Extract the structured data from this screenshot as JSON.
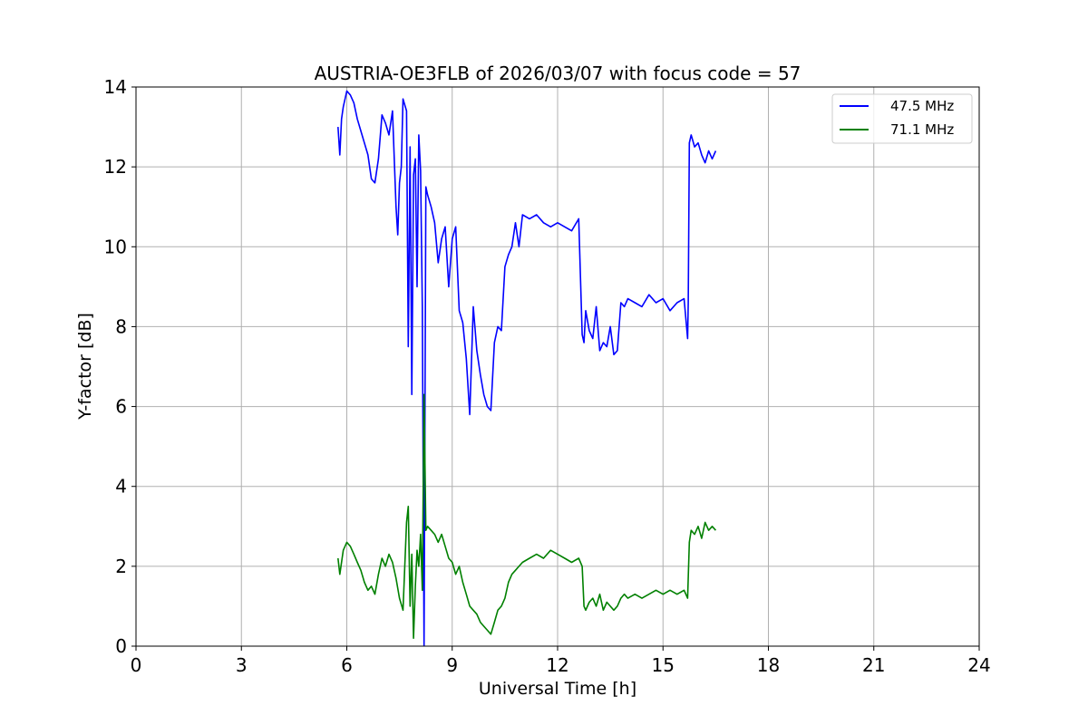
{
  "chart_data": {
    "type": "line",
    "title": "AUSTRIA-OE3FLB of 2026/03/07 with focus code = 57",
    "xlabel": "Universal Time [h]",
    "ylabel": "Y-factor [dB]",
    "xlim": [
      0,
      24
    ],
    "ylim": [
      0,
      14
    ],
    "xticks": [
      0,
      3,
      6,
      9,
      12,
      15,
      18,
      21,
      24
    ],
    "yticks": [
      0,
      2,
      4,
      6,
      8,
      10,
      12,
      14
    ],
    "grid": true,
    "legend_position": "top-right",
    "series": [
      {
        "name": "47.5 MHz",
        "color": "#0000ff",
        "x": [
          5.75,
          5.8,
          5.85,
          5.9,
          6.0,
          6.1,
          6.2,
          6.3,
          6.4,
          6.5,
          6.6,
          6.7,
          6.8,
          6.9,
          7.0,
          7.1,
          7.2,
          7.3,
          7.4,
          7.45,
          7.5,
          7.55,
          7.6,
          7.7,
          7.75,
          7.8,
          7.85,
          7.9,
          7.95,
          8.0,
          8.05,
          8.1,
          8.15,
          8.2,
          8.25,
          8.3,
          8.4,
          8.5,
          8.6,
          8.7,
          8.8,
          8.9,
          9.0,
          9.1,
          9.2,
          9.3,
          9.4,
          9.5,
          9.6,
          9.7,
          9.8,
          9.9,
          10.0,
          10.1,
          10.2,
          10.3,
          10.4,
          10.5,
          10.6,
          10.7,
          10.8,
          10.9,
          11.0,
          11.2,
          11.4,
          11.6,
          11.8,
          12.0,
          12.2,
          12.4,
          12.6,
          12.7,
          12.75,
          12.8,
          12.9,
          13.0,
          13.1,
          13.2,
          13.3,
          13.4,
          13.5,
          13.6,
          13.7,
          13.8,
          13.9,
          14.0,
          14.2,
          14.4,
          14.6,
          14.8,
          15.0,
          15.2,
          15.4,
          15.6,
          15.7,
          15.72,
          15.75,
          15.8,
          15.9,
          16.0,
          16.1,
          16.2,
          16.3,
          16.4,
          16.5
        ],
        "values": [
          13.0,
          12.3,
          13.2,
          13.5,
          13.9,
          13.8,
          13.6,
          13.2,
          12.9,
          12.6,
          12.3,
          11.7,
          11.6,
          12.2,
          13.3,
          13.1,
          12.8,
          13.4,
          11.0,
          10.3,
          11.6,
          12.0,
          13.7,
          13.4,
          7.5,
          12.5,
          6.3,
          11.8,
          12.2,
          9.0,
          12.8,
          11.9,
          8.5,
          0.0,
          11.5,
          11.3,
          11.0,
          10.6,
          9.6,
          10.2,
          10.5,
          9.0,
          10.2,
          10.5,
          8.4,
          8.1,
          7.2,
          5.8,
          8.5,
          7.4,
          6.8,
          6.3,
          6.0,
          5.9,
          7.6,
          8.0,
          7.9,
          9.5,
          9.8,
          10.0,
          10.6,
          10.0,
          10.8,
          10.7,
          10.8,
          10.6,
          10.5,
          10.6,
          10.5,
          10.4,
          10.7,
          7.8,
          7.6,
          8.4,
          7.9,
          7.7,
          8.5,
          7.4,
          7.6,
          7.5,
          8.0,
          7.3,
          7.4,
          8.6,
          8.5,
          8.7,
          8.6,
          8.5,
          8.8,
          8.6,
          8.7,
          8.4,
          8.6,
          8.7,
          7.7,
          8.6,
          12.6,
          12.8,
          12.5,
          12.6,
          12.3,
          12.1,
          12.4,
          12.2,
          12.4
        ]
      },
      {
        "name": "71.1 MHz",
        "color": "#008000",
        "x": [
          5.75,
          5.8,
          5.9,
          6.0,
          6.1,
          6.2,
          6.3,
          6.4,
          6.5,
          6.6,
          6.7,
          6.8,
          6.9,
          7.0,
          7.1,
          7.2,
          7.3,
          7.4,
          7.5,
          7.6,
          7.7,
          7.75,
          7.8,
          7.85,
          7.9,
          7.95,
          8.0,
          8.05,
          8.1,
          8.15,
          8.2,
          8.25,
          8.3,
          8.4,
          8.5,
          8.6,
          8.7,
          8.8,
          8.9,
          9.0,
          9.1,
          9.2,
          9.3,
          9.4,
          9.5,
          9.6,
          9.7,
          9.8,
          9.9,
          10.0,
          10.1,
          10.2,
          10.3,
          10.4,
          10.5,
          10.6,
          10.7,
          10.8,
          10.9,
          11.0,
          11.2,
          11.4,
          11.6,
          11.8,
          12.0,
          12.2,
          12.4,
          12.6,
          12.7,
          12.75,
          12.8,
          12.9,
          13.0,
          13.1,
          13.2,
          13.3,
          13.4,
          13.5,
          13.6,
          13.7,
          13.8,
          13.9,
          14.0,
          14.2,
          14.4,
          14.6,
          14.8,
          15.0,
          15.2,
          15.4,
          15.6,
          15.7,
          15.75,
          15.8,
          15.9,
          16.0,
          16.1,
          16.2,
          16.3,
          16.4,
          16.5
        ],
        "values": [
          2.2,
          1.8,
          2.4,
          2.6,
          2.5,
          2.3,
          2.1,
          1.9,
          1.6,
          1.4,
          1.5,
          1.3,
          1.8,
          2.2,
          2.0,
          2.3,
          2.1,
          1.7,
          1.2,
          0.9,
          3.1,
          3.5,
          1.0,
          2.3,
          0.2,
          1.5,
          2.4,
          2.0,
          2.8,
          1.4,
          6.3,
          2.9,
          3.0,
          2.9,
          2.8,
          2.6,
          2.8,
          2.5,
          2.2,
          2.1,
          1.8,
          2.0,
          1.6,
          1.3,
          1.0,
          0.9,
          0.8,
          0.6,
          0.5,
          0.4,
          0.3,
          0.6,
          0.9,
          1.0,
          1.2,
          1.6,
          1.8,
          1.9,
          2.0,
          2.1,
          2.2,
          2.3,
          2.2,
          2.4,
          2.3,
          2.2,
          2.1,
          2.2,
          2.0,
          1.0,
          0.9,
          1.1,
          1.2,
          1.0,
          1.3,
          0.9,
          1.1,
          1.0,
          0.9,
          1.0,
          1.2,
          1.3,
          1.2,
          1.3,
          1.2,
          1.3,
          1.4,
          1.3,
          1.4,
          1.3,
          1.4,
          1.2,
          2.6,
          2.9,
          2.8,
          3.0,
          2.7,
          3.1,
          2.9,
          3.0,
          2.9
        ]
      }
    ]
  }
}
